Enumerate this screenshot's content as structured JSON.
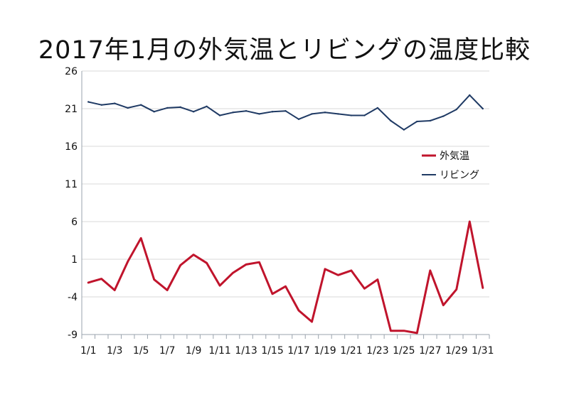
{
  "chart_data": {
    "type": "line",
    "title": "2017年1月の外気温とリビングの温度比較",
    "xlabel": "",
    "ylabel": "",
    "ylim": [
      -9,
      26
    ],
    "yticks": [
      26,
      21,
      16,
      11,
      6,
      1,
      -4,
      -9
    ],
    "grid": true,
    "legend_position": "right-middle",
    "categories": [
      "1/1",
      "1/2",
      "1/3",
      "1/4",
      "1/5",
      "1/6",
      "1/7",
      "1/8",
      "1/9",
      "1/10",
      "1/11",
      "1/12",
      "1/13",
      "1/14",
      "1/15",
      "1/16",
      "1/17",
      "1/18",
      "1/19",
      "1/20",
      "1/21",
      "1/22",
      "1/23",
      "1/24",
      "1/25",
      "1/26",
      "1/27",
      "1/28",
      "1/29",
      "1/30",
      "1/31"
    ],
    "x_tick_labels": [
      "1/1",
      "1/3",
      "1/5",
      "1/7",
      "1/9",
      "1/11",
      "1/13",
      "1/15",
      "1/17",
      "1/19",
      "1/21",
      "1/23",
      "1/25",
      "1/27",
      "1/29",
      "1/31"
    ],
    "series": [
      {
        "name": "外気温",
        "color": "#c0142c",
        "values": [
          -2.1,
          -1.6,
          -3.1,
          0.7,
          3.8,
          -1.7,
          -3.1,
          0.2,
          1.6,
          0.5,
          -2.5,
          -0.8,
          0.3,
          0.6,
          -3.6,
          -2.6,
          -5.8,
          -7.3,
          -0.3,
          -1.1,
          -0.5,
          -2.9,
          -1.7,
          -8.5,
          -8.5,
          -8.8,
          -0.5,
          -5.1,
          -3.0,
          6.0,
          -2.8
        ]
      },
      {
        "name": "リビング",
        "color": "#1f3a64",
        "values": [
          21.9,
          21.5,
          21.7,
          21.1,
          21.5,
          20.6,
          21.1,
          21.2,
          20.6,
          21.3,
          20.1,
          20.5,
          20.7,
          20.3,
          20.6,
          20.7,
          19.6,
          20.3,
          20.5,
          20.3,
          20.1,
          20.1,
          21.1,
          19.4,
          18.2,
          19.3,
          19.4,
          20.0,
          20.9,
          22.8,
          21.0
        ]
      }
    ]
  }
}
